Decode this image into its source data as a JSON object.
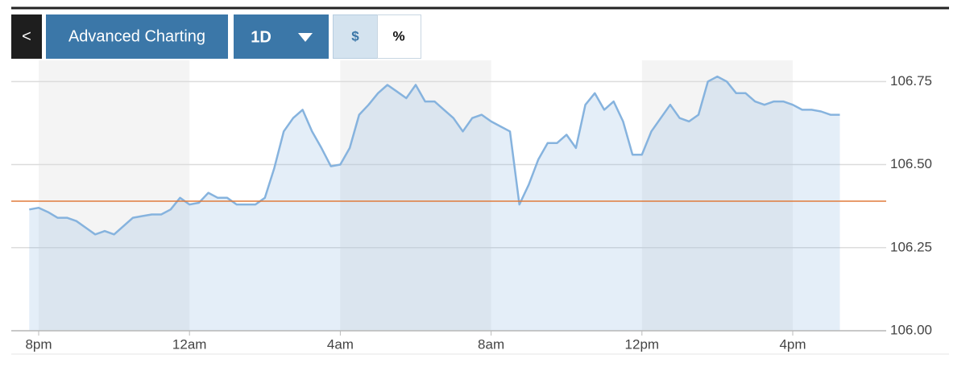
{
  "toolbar": {
    "back": "<",
    "title": "Advanced Charting",
    "range": "1D",
    "dollar": "$",
    "percent": "%"
  },
  "chart_data": {
    "type": "line",
    "categories": [
      null,
      "8pm",
      null,
      null,
      null,
      null,
      null,
      null,
      null,
      null,
      null,
      null,
      null,
      null,
      null,
      null,
      null,
      "12am",
      null,
      null,
      null,
      null,
      null,
      null,
      null,
      null,
      null,
      null,
      null,
      null,
      null,
      null,
      null,
      "4am",
      null,
      null,
      null,
      null,
      null,
      null,
      null,
      null,
      null,
      null,
      null,
      null,
      null,
      null,
      null,
      "8am",
      null,
      null,
      null,
      null,
      null,
      null,
      null,
      null,
      null,
      null,
      null,
      null,
      null,
      null,
      null,
      "12pm",
      null,
      null,
      null,
      null,
      null,
      null,
      null,
      null,
      null,
      null,
      null,
      null,
      null,
      null,
      null,
      "4pm",
      null,
      null,
      null,
      null,
      null
    ],
    "values": [
      106.365,
      106.37,
      106.357,
      106.34,
      106.34,
      106.33,
      106.31,
      106.29,
      106.3,
      106.29,
      106.315,
      106.34,
      106.345,
      106.35,
      106.35,
      106.365,
      106.4,
      106.38,
      106.385,
      106.415,
      106.4,
      106.4,
      106.38,
      106.38,
      106.38,
      106.4,
      106.49,
      106.6,
      106.64,
      106.665,
      106.6,
      106.55,
      106.495,
      106.5,
      106.55,
      106.65,
      106.68,
      106.715,
      106.74,
      106.72,
      106.7,
      106.74,
      106.69,
      106.69,
      106.665,
      106.64,
      106.6,
      106.64,
      106.65,
      106.63,
      106.615,
      106.6,
      106.38,
      106.44,
      106.515,
      106.565,
      106.565,
      106.59,
      106.55,
      106.68,
      106.715,
      106.665,
      106.69,
      106.63,
      106.53,
      106.53,
      106.6,
      106.64,
      106.68,
      106.64,
      106.63,
      106.65,
      106.75,
      106.765,
      106.75,
      106.715,
      106.715,
      106.69,
      106.68,
      106.69,
      106.69,
      106.68,
      106.665,
      106.665,
      106.66,
      106.65,
      106.65
    ],
    "color": "#86b3de",
    "ylim": [
      106,
      106.775
    ],
    "yticks": [
      {
        "value": 106,
        "label": "106.00"
      },
      106.25,
      {
        "value": 106.5,
        "label": "106.50"
      },
      106.75
    ],
    "grid": true,
    "reference_line": {
      "value": 106.39,
      "color": "#e07b3c"
    }
  }
}
